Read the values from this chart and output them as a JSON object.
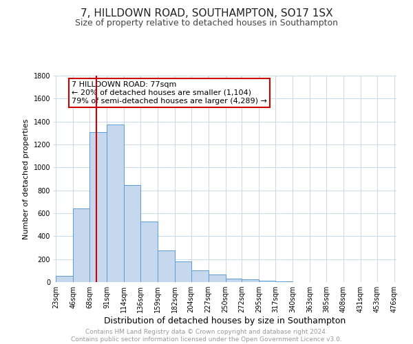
{
  "title": "7, HILLDOWN ROAD, SOUTHAMPTON, SO17 1SX",
  "subtitle": "Size of property relative to detached houses in Southampton",
  "xlabel": "Distribution of detached houses by size in Southampton",
  "ylabel": "Number of detached properties",
  "bar_color": "#c5d8ed",
  "bar_edge_color": "#5b9bd5",
  "background_color": "#ffffff",
  "grid_color": "#c8d8e8",
  "vline_x": 77,
  "vline_color": "#cc0000",
  "annotation_text": "7 HILLDOWN ROAD: 77sqm\n← 20% of detached houses are smaller (1,104)\n79% of semi-detached houses are larger (4,289) →",
  "annotation_box_color": "#ffffff",
  "annotation_box_edge": "#cc0000",
  "ylim": [
    0,
    1800
  ],
  "yticks": [
    0,
    200,
    400,
    600,
    800,
    1000,
    1200,
    1400,
    1600,
    1800
  ],
  "bin_edges": [
    23,
    46,
    68,
    91,
    114,
    136,
    159,
    182,
    204,
    227,
    250,
    272,
    295,
    317,
    340,
    363,
    385,
    408,
    431,
    453,
    476
  ],
  "bar_heights": [
    55,
    643,
    1310,
    1374,
    845,
    530,
    279,
    183,
    105,
    68,
    30,
    25,
    12,
    5,
    3,
    2,
    1,
    1,
    0,
    0
  ],
  "footer_text": "Contains HM Land Registry data © Crown copyright and database right 2024.\nContains public sector information licensed under the Open Government Licence v3.0.",
  "title_fontsize": 11,
  "subtitle_fontsize": 9,
  "xlabel_fontsize": 9,
  "ylabel_fontsize": 8,
  "tick_fontsize": 7,
  "annotation_fontsize": 8,
  "footer_fontsize": 6.5
}
